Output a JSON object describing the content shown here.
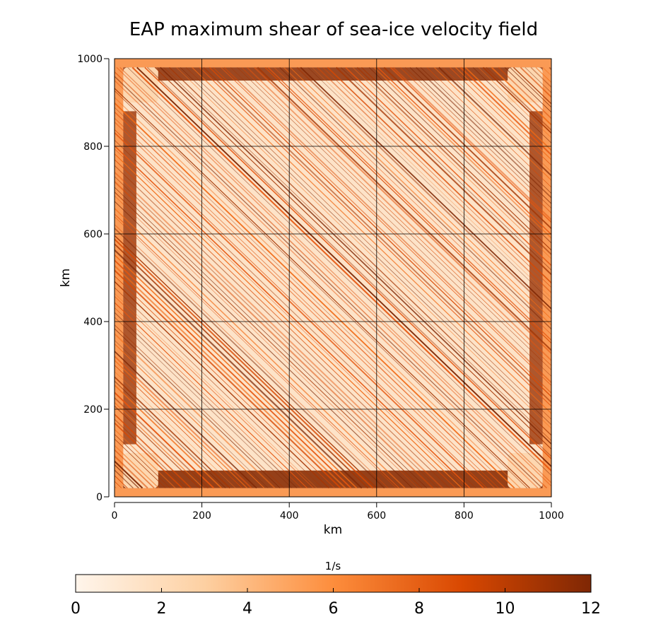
{
  "chart_data": {
    "type": "heatmap",
    "title": "EAP maximum shear of sea-ice velocity field",
    "xlabel": "km",
    "ylabel": "km",
    "xlim": [
      0,
      1000
    ],
    "ylim": [
      0,
      1000
    ],
    "x_ticks": [
      0,
      200,
      400,
      600,
      800,
      1000
    ],
    "y_ticks": [
      0,
      200,
      400,
      600,
      800,
      1000
    ],
    "grid": true,
    "colorbar": {
      "label": "1/s",
      "range": [
        0,
        12
      ],
      "ticks": [
        0,
        2,
        4,
        6,
        8,
        10,
        12
      ],
      "colors": [
        "#fff5eb",
        "#fdd0a2",
        "#fd8d3c",
        "#d94801",
        "#7f2704"
      ],
      "position": "bottom"
    }
  }
}
